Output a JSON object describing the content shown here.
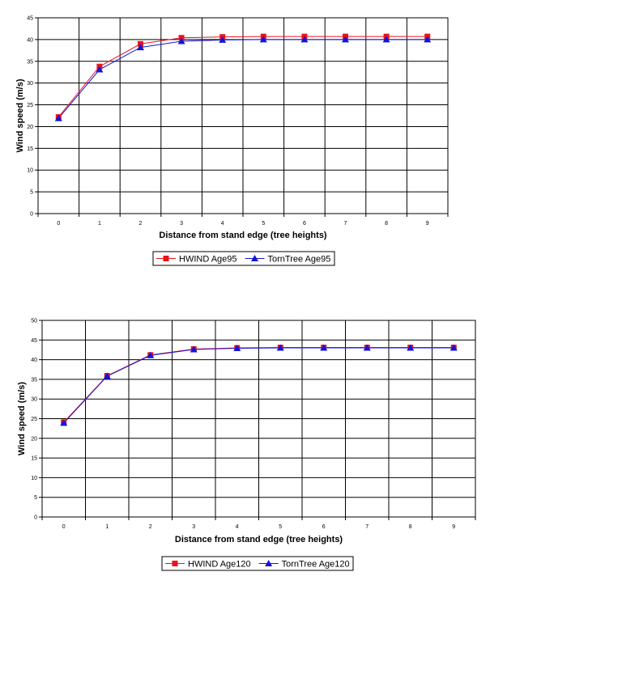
{
  "chart_data": [
    {
      "type": "line",
      "xlabel": "Distance from stand edge (tree heights)",
      "ylabel": "Wind speed (m/s)",
      "categories": [
        "0",
        "1",
        "2",
        "3",
        "4",
        "5",
        "6",
        "7",
        "8",
        "9"
      ],
      "ylim": [
        0,
        45
      ],
      "yticks": [
        0,
        5,
        10,
        15,
        20,
        25,
        30,
        35,
        40,
        45
      ],
      "grid": true,
      "legend_position": "bottom",
      "series": [
        {
          "name": "HWIND  Age95",
          "color": "#e8141c",
          "marker": "square",
          "values": [
            22.2,
            33.8,
            39.0,
            40.4,
            40.6,
            40.7,
            40.7,
            40.7,
            40.7,
            40.7
          ]
        },
        {
          "name": "TornTree Age95",
          "color": "#1414dc",
          "marker": "triangle",
          "values": [
            21.9,
            33.1,
            38.2,
            39.6,
            39.9,
            40.0,
            40.0,
            40.0,
            40.0,
            40.0
          ]
        }
      ]
    },
    {
      "type": "line",
      "xlabel": "Distance from stand edge (tree heights)",
      "ylabel": "Wind speed (m/s)",
      "categories": [
        "0",
        "1",
        "2",
        "3",
        "4",
        "5",
        "6",
        "7",
        "8",
        "9"
      ],
      "ylim": [
        0,
        50
      ],
      "yticks": [
        0,
        5,
        10,
        15,
        20,
        25,
        30,
        35,
        40,
        45,
        50
      ],
      "grid": true,
      "legend_position": "bottom",
      "series": [
        {
          "name": "HWIND  Age120",
          "color": "#e8141c",
          "marker": "square",
          "values": [
            24.1,
            35.9,
            41.2,
            42.7,
            43.0,
            43.1,
            43.1,
            43.1,
            43.1,
            43.1
          ]
        },
        {
          "name": "TornTree Age120",
          "color": "#1414dc",
          "marker": "triangle",
          "values": [
            23.9,
            35.8,
            41.1,
            42.6,
            42.9,
            43.0,
            43.0,
            43.0,
            43.0,
            43.0
          ]
        }
      ]
    }
  ]
}
